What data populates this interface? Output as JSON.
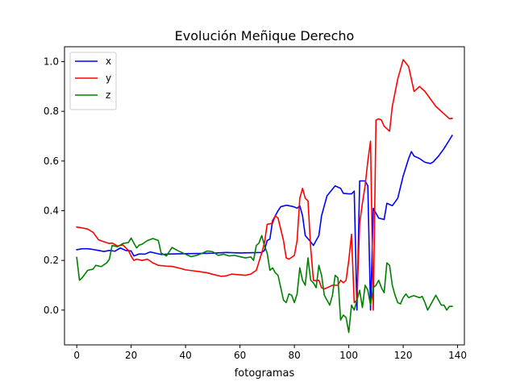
{
  "chart_data": {
    "type": "line",
    "title": "Evolución Meñique Derecho",
    "xlabel": "fotogramas",
    "ylabel": "",
    "xlim": [
      -4.5,
      142.5
    ],
    "ylim": [
      -0.14,
      1.06
    ],
    "xticks": [
      0,
      20,
      40,
      60,
      80,
      100,
      120,
      140
    ],
    "yticks": [
      0.0,
      0.2,
      0.4,
      0.6,
      0.8,
      1.0
    ],
    "xtick_labels": [
      "0",
      "20",
      "40",
      "60",
      "80",
      "100",
      "120",
      "140"
    ],
    "ytick_labels": [
      "0.0",
      "0.2",
      "0.4",
      "0.6",
      "0.8",
      "1.0"
    ],
    "grid": false,
    "legend_position": "upper-left",
    "series": [
      {
        "name": "x",
        "color": "#0000ff",
        "points": [
          [
            0,
            0.243
          ],
          [
            2,
            0.247
          ],
          [
            4,
            0.247
          ],
          [
            6,
            0.244
          ],
          [
            8,
            0.24
          ],
          [
            10,
            0.236
          ],
          [
            12,
            0.24
          ],
          [
            14,
            0.237
          ],
          [
            16,
            0.25
          ],
          [
            18,
            0.24
          ],
          [
            20,
            0.238
          ],
          [
            21,
            0.218
          ],
          [
            23,
            0.226
          ],
          [
            25,
            0.225
          ],
          [
            27,
            0.234
          ],
          [
            29,
            0.229
          ],
          [
            31,
            0.224
          ],
          [
            33,
            0.225
          ],
          [
            35,
            0.226
          ],
          [
            40,
            0.227
          ],
          [
            45,
            0.228
          ],
          [
            50,
            0.229
          ],
          [
            55,
            0.232
          ],
          [
            60,
            0.23
          ],
          [
            65,
            0.231
          ],
          [
            68,
            0.232
          ],
          [
            69,
            0.24
          ],
          [
            70,
            0.28
          ],
          [
            71,
            0.286
          ],
          [
            72,
            0.36
          ],
          [
            74,
            0.4
          ],
          [
            75,
            0.416
          ],
          [
            77,
            0.422
          ],
          [
            79,
            0.418
          ],
          [
            80,
            0.415
          ],
          [
            81,
            0.41
          ],
          [
            82,
            0.42
          ],
          [
            83,
            0.38
          ],
          [
            84,
            0.3
          ],
          [
            86,
            0.275
          ],
          [
            87,
            0.26
          ],
          [
            89,
            0.3
          ],
          [
            90,
            0.38
          ],
          [
            92,
            0.46
          ],
          [
            95,
            0.5
          ],
          [
            97,
            0.49
          ],
          [
            98,
            0.47
          ],
          [
            100,
            0.468
          ],
          [
            101,
            0.468
          ],
          [
            102,
            0.479
          ],
          [
            103,
            0.0
          ],
          [
            104,
            0.52
          ],
          [
            106,
            0.52
          ],
          [
            107,
            0.5
          ],
          [
            108,
            0.0
          ],
          [
            109,
            0.41
          ],
          [
            110,
            0.39
          ],
          [
            111,
            0.37
          ],
          [
            113,
            0.365
          ],
          [
            114,
            0.43
          ],
          [
            115,
            0.425
          ],
          [
            116,
            0.42
          ],
          [
            118,
            0.45
          ],
          [
            120,
            0.54
          ],
          [
            122,
            0.61
          ],
          [
            123,
            0.638
          ],
          [
            124,
            0.62
          ],
          [
            126,
            0.61
          ],
          [
            128,
            0.595
          ],
          [
            130,
            0.59
          ],
          [
            131,
            0.596
          ],
          [
            133,
            0.62
          ],
          [
            135,
            0.65
          ],
          [
            137,
            0.685
          ],
          [
            138,
            0.703
          ]
        ]
      },
      {
        "name": "y",
        "color": "#ff0000",
        "points": [
          [
            0,
            0.334
          ],
          [
            2,
            0.331
          ],
          [
            4,
            0.326
          ],
          [
            6,
            0.313
          ],
          [
            8,
            0.283
          ],
          [
            10,
            0.275
          ],
          [
            12,
            0.268
          ],
          [
            13,
            0.27
          ],
          [
            15,
            0.258
          ],
          [
            17,
            0.262
          ],
          [
            19,
            0.24
          ],
          [
            20,
            0.217
          ],
          [
            21,
            0.2
          ],
          [
            22,
            0.205
          ],
          [
            24,
            0.2
          ],
          [
            26,
            0.205
          ],
          [
            28,
            0.19
          ],
          [
            30,
            0.18
          ],
          [
            33,
            0.177
          ],
          [
            35,
            0.176
          ],
          [
            38,
            0.168
          ],
          [
            40,
            0.162
          ],
          [
            43,
            0.158
          ],
          [
            45,
            0.155
          ],
          [
            48,
            0.15
          ],
          [
            50,
            0.144
          ],
          [
            53,
            0.136
          ],
          [
            55,
            0.138
          ],
          [
            57,
            0.145
          ],
          [
            60,
            0.142
          ],
          [
            62,
            0.14
          ],
          [
            64,
            0.145
          ],
          [
            66,
            0.16
          ],
          [
            68,
            0.23
          ],
          [
            69,
            0.27
          ],
          [
            70,
            0.345
          ],
          [
            72,
            0.35
          ],
          [
            73,
            0.38
          ],
          [
            74,
            0.37
          ],
          [
            76,
            0.28
          ],
          [
            77,
            0.21
          ],
          [
            78,
            0.205
          ],
          [
            80,
            0.22
          ],
          [
            81,
            0.28
          ],
          [
            82,
            0.45
          ],
          [
            83,
            0.49
          ],
          [
            84,
            0.45
          ],
          [
            85,
            0.44
          ],
          [
            86,
            0.25
          ],
          [
            87,
            0.12
          ],
          [
            88,
            0.118
          ],
          [
            89,
            0.12
          ],
          [
            90,
            0.09
          ],
          [
            91,
            0.085
          ],
          [
            93,
            0.095
          ],
          [
            94,
            0.1
          ],
          [
            96,
            0.1
          ],
          [
            97,
            0.12
          ],
          [
            98,
            0.11
          ],
          [
            99,
            0.12
          ],
          [
            100,
            0.2
          ],
          [
            101,
            0.305
          ],
          [
            102,
            0.03
          ],
          [
            103,
            0.04
          ],
          [
            104,
            0.35
          ],
          [
            105,
            0.43
          ],
          [
            106,
            0.5
          ],
          [
            107,
            0.6
          ],
          [
            108,
            0.68
          ],
          [
            109,
            0.0
          ],
          [
            110,
            0.765
          ],
          [
            111,
            0.77
          ],
          [
            112,
            0.765
          ],
          [
            113,
            0.74
          ],
          [
            115,
            0.72
          ],
          [
            116,
            0.82
          ],
          [
            118,
            0.93
          ],
          [
            120,
            1.008
          ],
          [
            122,
            0.98
          ],
          [
            124,
            0.88
          ],
          [
            126,
            0.9
          ],
          [
            128,
            0.88
          ],
          [
            130,
            0.85
          ],
          [
            132,
            0.82
          ],
          [
            134,
            0.8
          ],
          [
            136,
            0.78
          ],
          [
            137,
            0.77
          ],
          [
            138,
            0.772
          ]
        ]
      },
      {
        "name": "z",
        "color": "#008000",
        "points": [
          [
            0,
            0.212
          ],
          [
            1,
            0.12
          ],
          [
            2,
            0.13
          ],
          [
            4,
            0.16
          ],
          [
            6,
            0.165
          ],
          [
            7,
            0.18
          ],
          [
            9,
            0.175
          ],
          [
            11,
            0.19
          ],
          [
            12,
            0.205
          ],
          [
            13,
            0.26
          ],
          [
            15,
            0.255
          ],
          [
            17,
            0.268
          ],
          [
            19,
            0.272
          ],
          [
            20,
            0.29
          ],
          [
            21,
            0.27
          ],
          [
            22,
            0.25
          ],
          [
            23,
            0.262
          ],
          [
            24,
            0.265
          ],
          [
            26,
            0.28
          ],
          [
            28,
            0.288
          ],
          [
            30,
            0.28
          ],
          [
            31,
            0.23
          ],
          [
            33,
            0.218
          ],
          [
            35,
            0.252
          ],
          [
            37,
            0.24
          ],
          [
            39,
            0.23
          ],
          [
            41,
            0.22
          ],
          [
            42,
            0.215
          ],
          [
            44,
            0.22
          ],
          [
            46,
            0.228
          ],
          [
            48,
            0.238
          ],
          [
            50,
            0.235
          ],
          [
            52,
            0.22
          ],
          [
            54,
            0.225
          ],
          [
            56,
            0.218
          ],
          [
            58,
            0.22
          ],
          [
            60,
            0.215
          ],
          [
            62,
            0.21
          ],
          [
            64,
            0.214
          ],
          [
            65,
            0.2
          ],
          [
            66,
            0.26
          ],
          [
            67,
            0.27
          ],
          [
            68,
            0.3
          ],
          [
            69,
            0.26
          ],
          [
            70,
            0.23
          ],
          [
            71,
            0.16
          ],
          [
            72,
            0.17
          ],
          [
            73,
            0.15
          ],
          [
            74,
            0.14
          ],
          [
            75,
            0.09
          ],
          [
            76,
            0.04
          ],
          [
            77,
            0.03
          ],
          [
            78,
            0.065
          ],
          [
            79,
            0.06
          ],
          [
            80,
            0.03
          ],
          [
            81,
            0.065
          ],
          [
            82,
            0.17
          ],
          [
            83,
            0.12
          ],
          [
            84,
            0.1
          ],
          [
            85,
            0.21
          ],
          [
            86,
            0.12
          ],
          [
            87,
            0.11
          ],
          [
            88,
            0.09
          ],
          [
            89,
            0.18
          ],
          [
            90,
            0.14
          ],
          [
            91,
            0.06
          ],
          [
            92,
            0.04
          ],
          [
            93,
            0.02
          ],
          [
            94,
            0.06
          ],
          [
            95,
            0.14
          ],
          [
            96,
            0.13
          ],
          [
            97,
            -0.04
          ],
          [
            98,
            -0.02
          ],
          [
            99,
            -0.03
          ],
          [
            100,
            -0.09
          ],
          [
            101,
            0.02
          ],
          [
            102,
            0.0
          ],
          [
            103,
            0.04
          ],
          [
            104,
            0.08
          ],
          [
            105,
            0.01
          ],
          [
            106,
            0.1
          ],
          [
            107,
            0.08
          ],
          [
            108,
            0.02
          ],
          [
            109,
            0.09
          ],
          [
            110,
            0.1
          ],
          [
            111,
            0.12
          ],
          [
            112,
            0.09
          ],
          [
            113,
            0.07
          ],
          [
            114,
            0.19
          ],
          [
            115,
            0.18
          ],
          [
            116,
            0.1
          ],
          [
            117,
            0.06
          ],
          [
            118,
            0.03
          ],
          [
            119,
            0.025
          ],
          [
            120,
            0.05
          ],
          [
            121,
            0.065
          ],
          [
            122,
            0.05
          ],
          [
            123,
            0.055
          ],
          [
            124,
            0.058
          ],
          [
            126,
            0.05
          ],
          [
            127,
            0.055
          ],
          [
            128,
            0.03
          ],
          [
            129,
            0.0
          ],
          [
            130,
            0.02
          ],
          [
            132,
            0.06
          ],
          [
            133,
            0.04
          ],
          [
            134,
            0.02
          ],
          [
            135,
            0.02
          ],
          [
            136,
            0.0
          ],
          [
            137,
            0.015
          ],
          [
            138,
            0.015
          ]
        ]
      }
    ]
  }
}
